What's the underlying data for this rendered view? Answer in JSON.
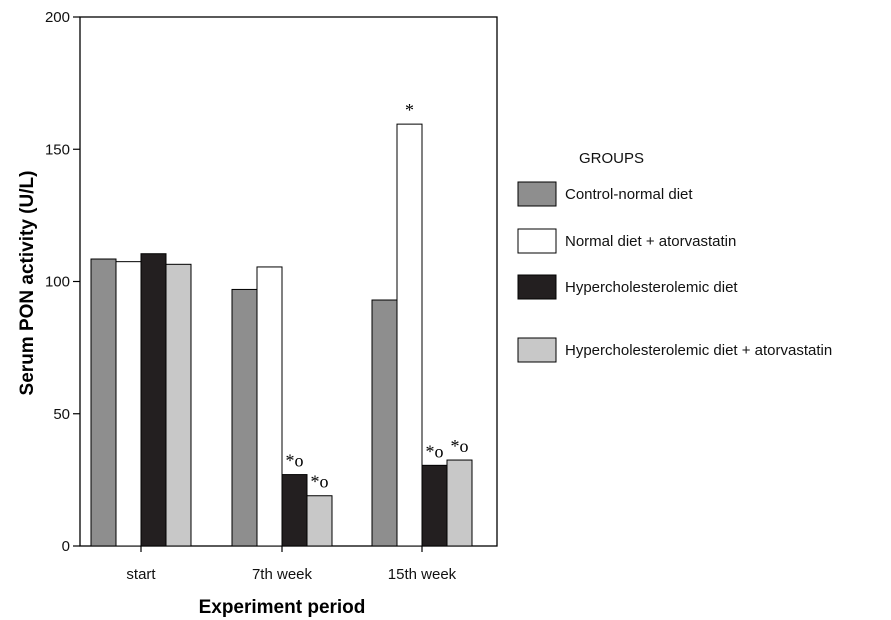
{
  "chart_data": {
    "type": "bar",
    "categories": [
      "start",
      "7th week",
      "15th week"
    ],
    "series": [
      {
        "name": "Control-normal diet",
        "values": [
          108.5,
          97,
          93
        ],
        "color": "#8e8e8e"
      },
      {
        "name": "Normal diet + atorvastatin",
        "values": [
          107.5,
          105.5,
          159.5
        ],
        "color": "#ffffff"
      },
      {
        "name": "Hypercholesterolemic diet",
        "values": [
          110.5,
          27,
          30.5
        ],
        "color": "#231f20"
      },
      {
        "name": "Hypercholesterolemic diet + atorvastatin",
        "values": [
          106.5,
          19,
          32.5
        ],
        "color": "#c8c8c8"
      }
    ],
    "annotations": [
      {
        "category": "7th week",
        "series": 2,
        "text": "*o"
      },
      {
        "category": "7th week",
        "series": 3,
        "text": "*o"
      },
      {
        "category": "15th week",
        "series": 1,
        "text": "*"
      },
      {
        "category": "15th week",
        "series": 2,
        "text": "*o"
      },
      {
        "category": "15th week",
        "series": 3,
        "text": "*o"
      }
    ],
    "xlabel": "Experiment period",
    "ylabel": "Serum PON activity (U/L)",
    "ylim": [
      0,
      200
    ],
    "yticks": [
      0,
      50,
      100,
      150,
      200
    ],
    "legend_title": "GROUPS",
    "legend_position": "right",
    "grid": false
  }
}
